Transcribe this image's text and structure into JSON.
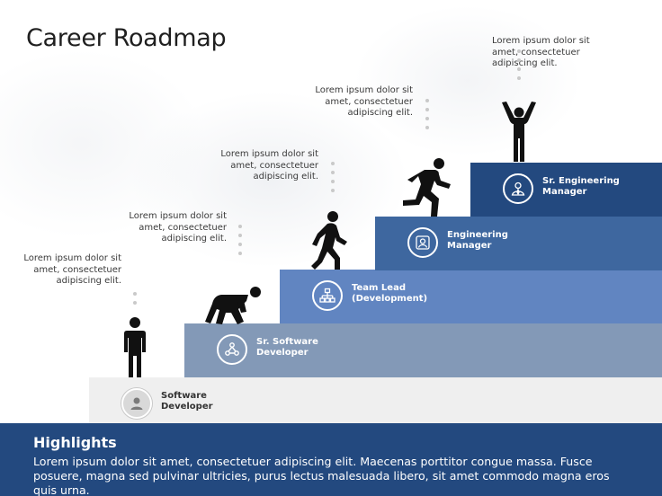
{
  "title": "Career Roadmap",
  "steps": [
    {
      "label": "Software\nDeveloper",
      "icon": "person-icon",
      "color": "#efefef",
      "description": "Lorem ipsum dolor sit\namet, consectetuer\nadipiscing elit."
    },
    {
      "label": "Sr. Software\nDeveloper",
      "icon": "network-icon",
      "color": "#8399b7",
      "description": "Lorem ipsum dolor sit\namet, consectetuer\nadipiscing elit."
    },
    {
      "label": "Team Lead\n(Development)",
      "icon": "org-chart-icon",
      "color": "#6185c1",
      "description": "Lorem ipsum dolor sit\namet, consectetuer\nadipiscing elit."
    },
    {
      "label": "Engineering\nManager",
      "icon": "manager-icon",
      "color": "#3e679f",
      "description": "Lorem ipsum dolor sit\namet, consectetuer\nadipiscing elit."
    },
    {
      "label": "Sr. Engineering\nManager",
      "icon": "executive-icon",
      "color": "#23497f",
      "description": "Lorem ipsum dolor sit\namet, consectetuer\nadipiscing elit."
    }
  ],
  "highlights": {
    "title": "Highlights",
    "text": "Lorem ipsum dolor sit amet, consectetuer adipiscing elit. Maecenas porttitor congue massa. Fusce posuere, magna sed pulvinar ultricies, purus lectus malesuada libero, sit amet commodo magna eros quis urna."
  },
  "colors": {
    "accent": "#23497f",
    "text": "#1f1f1f",
    "dots": "#c9c9c9"
  }
}
